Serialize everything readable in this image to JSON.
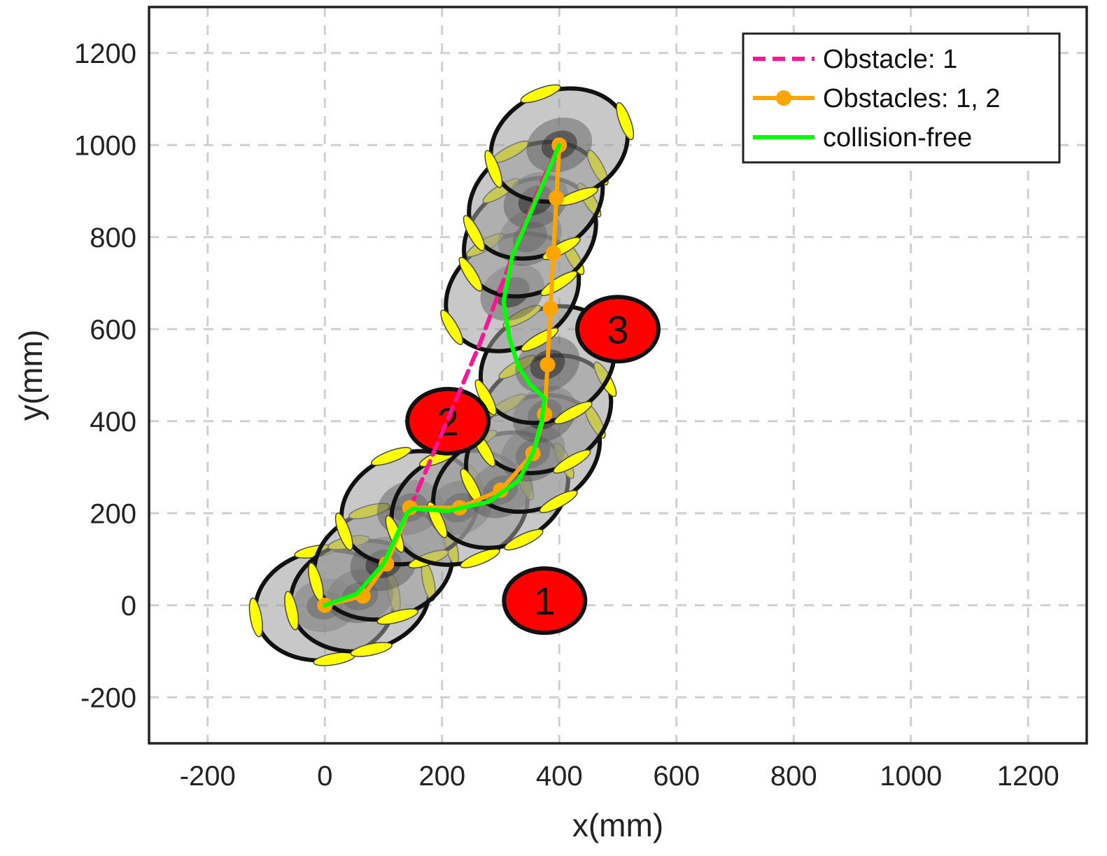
{
  "chart_data": {
    "type": "line",
    "title": "",
    "xlabel": "x(mm)",
    "ylabel": "y(mm)",
    "xlim": [
      -300,
      1300
    ],
    "ylim": [
      -300,
      1300
    ],
    "xticks": [
      -200,
      0,
      200,
      400,
      600,
      800,
      1000,
      1200
    ],
    "yticks": [
      -200,
      0,
      200,
      400,
      600,
      800,
      1000,
      1200
    ],
    "xtick_labels": [
      "-200",
      "0",
      "200",
      "400",
      "600",
      "800",
      "1000",
      "1200"
    ],
    "ytick_labels": [
      "-200",
      "0",
      "200",
      "400",
      "600",
      "800",
      "1000",
      "1200"
    ],
    "grid": true,
    "legend_position": "top-right",
    "series": [
      {
        "name": "Obstacle: 1",
        "style": "dashed",
        "color": "#ff1493",
        "points": [
          [
            0,
            0
          ],
          [
            60,
            20
          ],
          [
            100,
            90
          ],
          [
            145,
            210
          ],
          [
            185,
            330
          ],
          [
            225,
            450
          ],
          [
            265,
            570
          ],
          [
            300,
            690
          ],
          [
            335,
            810
          ],
          [
            370,
            920
          ],
          [
            400,
            1000
          ]
        ]
      },
      {
        "name": "Obstacles: 1, 2",
        "style": "solid-markers",
        "color": "#ffa500",
        "points": [
          [
            0,
            0
          ],
          [
            65,
            20
          ],
          [
            105,
            90
          ],
          [
            145,
            212
          ],
          [
            230,
            212
          ],
          [
            300,
            250
          ],
          [
            355,
            330
          ],
          [
            375,
            415
          ],
          [
            380,
            523
          ],
          [
            385,
            645
          ],
          [
            390,
            765
          ],
          [
            395,
            885
          ],
          [
            400,
            1000
          ]
        ]
      },
      {
        "name": "collision-free",
        "style": "solid",
        "color": "#00ff00",
        "points": [
          [
            0,
            0
          ],
          [
            55,
            25
          ],
          [
            100,
            90
          ],
          [
            140,
            200
          ],
          [
            150,
            210
          ],
          [
            210,
            205
          ],
          [
            280,
            225
          ],
          [
            330,
            270
          ],
          [
            355,
            330
          ],
          [
            370,
            400
          ],
          [
            375,
            450
          ],
          [
            350,
            480
          ],
          [
            330,
            520
          ],
          [
            315,
            580
          ],
          [
            305,
            660
          ],
          [
            320,
            760
          ],
          [
            360,
            880
          ],
          [
            400,
            1000
          ]
        ]
      }
    ],
    "obstacles": [
      {
        "label": "1",
        "x": 375,
        "y": 10
      },
      {
        "label": "2",
        "x": 210,
        "y": 400
      },
      {
        "label": "3",
        "x": 500,
        "y": 600
      }
    ],
    "robot_poses": [
      {
        "x": 0,
        "y": 0,
        "angle": -10
      },
      {
        "x": 60,
        "y": 20,
        "angle": -12
      },
      {
        "x": 100,
        "y": 90,
        "angle": -15
      },
      {
        "x": 145,
        "y": 212,
        "angle": -20
      },
      {
        "x": 230,
        "y": 212,
        "angle": -22
      },
      {
        "x": 300,
        "y": 250,
        "angle": -25
      },
      {
        "x": 355,
        "y": 330,
        "angle": -28
      },
      {
        "x": 375,
        "y": 415,
        "angle": -30
      },
      {
        "x": 380,
        "y": 523,
        "angle": -28
      },
      {
        "x": 320,
        "y": 680,
        "angle": -30
      },
      {
        "x": 350,
        "y": 800,
        "angle": -32
      },
      {
        "x": 360,
        "y": 880,
        "angle": -28
      },
      {
        "x": 400,
        "y": 1000,
        "angle": -20
      }
    ],
    "colors": {
      "obstacle_fill": "#ff0000",
      "robot_body": "#9a9a9a",
      "robot_wheel": "#ffff00"
    }
  }
}
